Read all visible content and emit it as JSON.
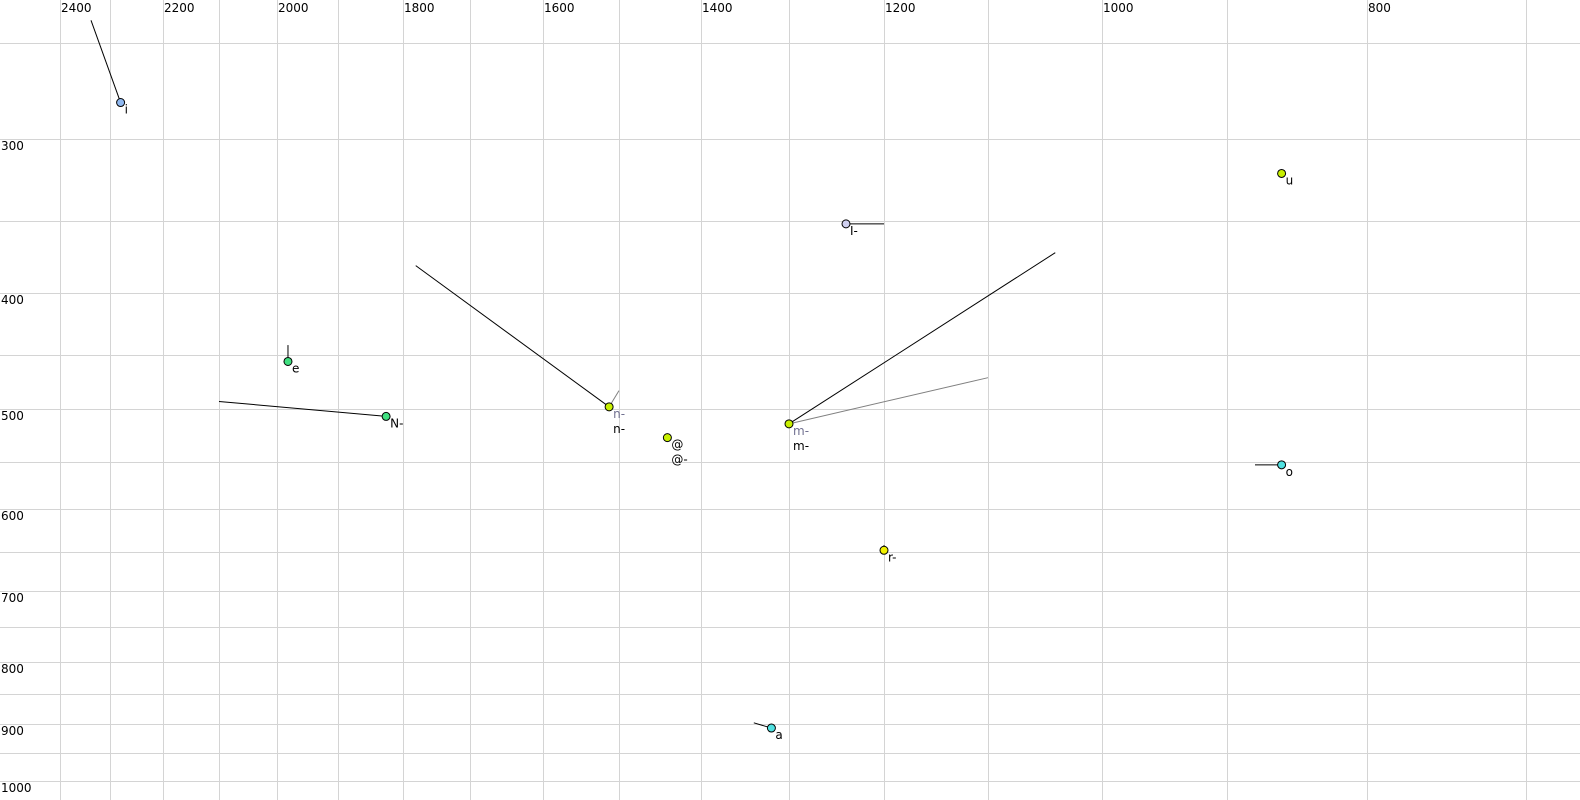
{
  "chart_data": {
    "type": "scatter",
    "title": "",
    "xlabel": "",
    "ylabel": "",
    "x_axis": {
      "reversed": true,
      "position": "top",
      "range": [
        2450,
        680
      ],
      "tick_labels": [
        2400,
        2200,
        2000,
        1800,
        1600,
        1400,
        1200,
        1000,
        800
      ],
      "grid_step": 100
    },
    "y_axis": {
      "reversed": false,
      "position": "left",
      "range": [
        250,
        1000
      ],
      "tick_labels": [
        300,
        400,
        500,
        600,
        700,
        800,
        900,
        1000
      ],
      "grid_step": 50
    },
    "grid": true,
    "points": [
      {
        "labels": [
          {
            "text": "i",
            "color": "#000000"
          }
        ],
        "f2": 2280,
        "f1": 281,
        "color": "#8fb8f0",
        "trails": [
          {
            "f2": 2338,
            "f1": 239,
            "color": "#000000"
          }
        ]
      },
      {
        "labels": [
          {
            "text": "e",
            "color": "#000000"
          }
        ],
        "f2": 1982,
        "f1": 456,
        "color": "#40e080",
        "trails": [
          {
            "f2": 1982,
            "f1": 442,
            "color": "#000000"
          }
        ]
      },
      {
        "labels": [
          {
            "text": "N-",
            "color": "#000000"
          }
        ],
        "f2": 1826,
        "f1": 507,
        "color": "#40e080",
        "trails": [
          {
            "f2": 2100,
            "f1": 493,
            "color": "#000000"
          }
        ]
      },
      {
        "labels": [
          {
            "text": "n-",
            "color": "#707090"
          },
          {
            "text": "n-",
            "color": "#000000"
          }
        ],
        "f2": 1513,
        "f1": 498,
        "color": "#c8f000",
        "trails": [
          {
            "f2": 1781,
            "f1": 381,
            "color": "#000000"
          },
          {
            "f2": 1500,
            "f1": 483,
            "color": "#808080"
          }
        ]
      },
      {
        "labels": [
          {
            "text": "@",
            "color": "#000000"
          },
          {
            "text": "@-",
            "color": "#000000"
          }
        ],
        "f2": 1441,
        "f1": 527,
        "color": "#c8f000",
        "trails": []
      },
      {
        "labels": [
          {
            "text": "m-",
            "color": "#707090"
          },
          {
            "text": "m-",
            "color": "#000000"
          }
        ],
        "f2": 1300,
        "f1": 514,
        "color": "#c8f000",
        "trails": [
          {
            "f2": 1041,
            "f1": 372,
            "color": "#000000"
          },
          {
            "f2": 1100,
            "f1": 471,
            "color": "#808080"
          }
        ]
      },
      {
        "labels": [
          {
            "text": "I-",
            "color": "#000000"
          }
        ],
        "f2": 1240,
        "f1": 352,
        "color": "#d0d0f0",
        "trails": [
          {
            "f2": 1200,
            "f1": 352,
            "color": "#000000"
          }
        ]
      },
      {
        "labels": [
          {
            "text": "u",
            "color": "#000000"
          }
        ],
        "f2": 861,
        "f1": 321,
        "color": "#c8f000",
        "trails": []
      },
      {
        "labels": [
          {
            "text": "o",
            "color": "#000000"
          }
        ],
        "f2": 861,
        "f1": 553,
        "color": "#50e0e0",
        "trails": [
          {
            "f2": 880,
            "f1": 553,
            "color": "#000000"
          }
        ]
      },
      {
        "labels": [
          {
            "text": "r-",
            "color": "#000000"
          }
        ],
        "f2": 1200,
        "f1": 648,
        "color": "#f0f000",
        "trails": [
          {
            "f2": 1200,
            "f1": 642,
            "color": "#000000"
          }
        ]
      },
      {
        "labels": [
          {
            "text": "a",
            "color": "#000000"
          }
        ],
        "f2": 1320,
        "f1": 907,
        "color": "#50e0e0",
        "trails": [
          {
            "f2": 1340,
            "f1": 898,
            "color": "#000000"
          }
        ]
      }
    ]
  }
}
